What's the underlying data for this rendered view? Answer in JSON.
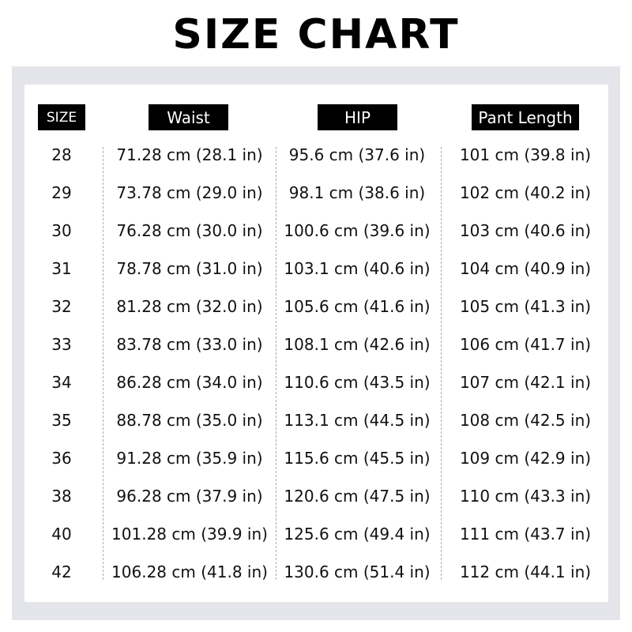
{
  "title": "SIZE CHART",
  "headers": [
    "SIZE",
    "Waist",
    "HIP",
    "Pant Length"
  ],
  "rows": [
    [
      "28",
      "71.28 cm (28.1 in)",
      "95.6 cm (37.6 in)",
      "101 cm (39.8 in)"
    ],
    [
      "29",
      "73.78 cm (29.0 in)",
      "98.1 cm (38.6 in)",
      "102 cm (40.2 in)"
    ],
    [
      "30",
      "76.28 cm (30.0 in)",
      "100.6 cm (39.6 in)",
      "103 cm (40.6 in)"
    ],
    [
      "31",
      "78.78 cm (31.0 in)",
      "103.1 cm (40.6 in)",
      "104 cm (40.9 in)"
    ],
    [
      "32",
      "81.28 cm (32.0 in)",
      "105.6 cm (41.6 in)",
      "105 cm (41.3 in)"
    ],
    [
      "33",
      "83.78 cm (33.0 in)",
      "108.1 cm (42.6 in)",
      "106 cm (41.7 in)"
    ],
    [
      "34",
      "86.28 cm (34.0 in)",
      "110.6 cm (43.5 in)",
      "107 cm (42.1 in)"
    ],
    [
      "35",
      "88.78 cm (35.0 in)",
      "113.1 cm (44.5 in)",
      "108 cm (42.5 in)"
    ],
    [
      "36",
      "91.28 cm (35.9 in)",
      "115.6 cm (45.5 in)",
      "109 cm (42.9 in)"
    ],
    [
      "38",
      "96.28 cm (37.9 in)",
      "120.6 cm (47.5 in)",
      "110 cm (43.3 in)"
    ],
    [
      "40",
      "101.28 cm (39.9 in)",
      "125.6 cm (49.4 in)",
      "111 cm (43.7 in)"
    ],
    [
      "42",
      "106.28 cm (41.8 in)",
      "130.6 cm (51.4 in)",
      "112 cm (44.1 in)"
    ]
  ],
  "colors": {
    "panel": "#e4e5ea",
    "header_bg": "#000000",
    "header_text": "#ffffff"
  }
}
